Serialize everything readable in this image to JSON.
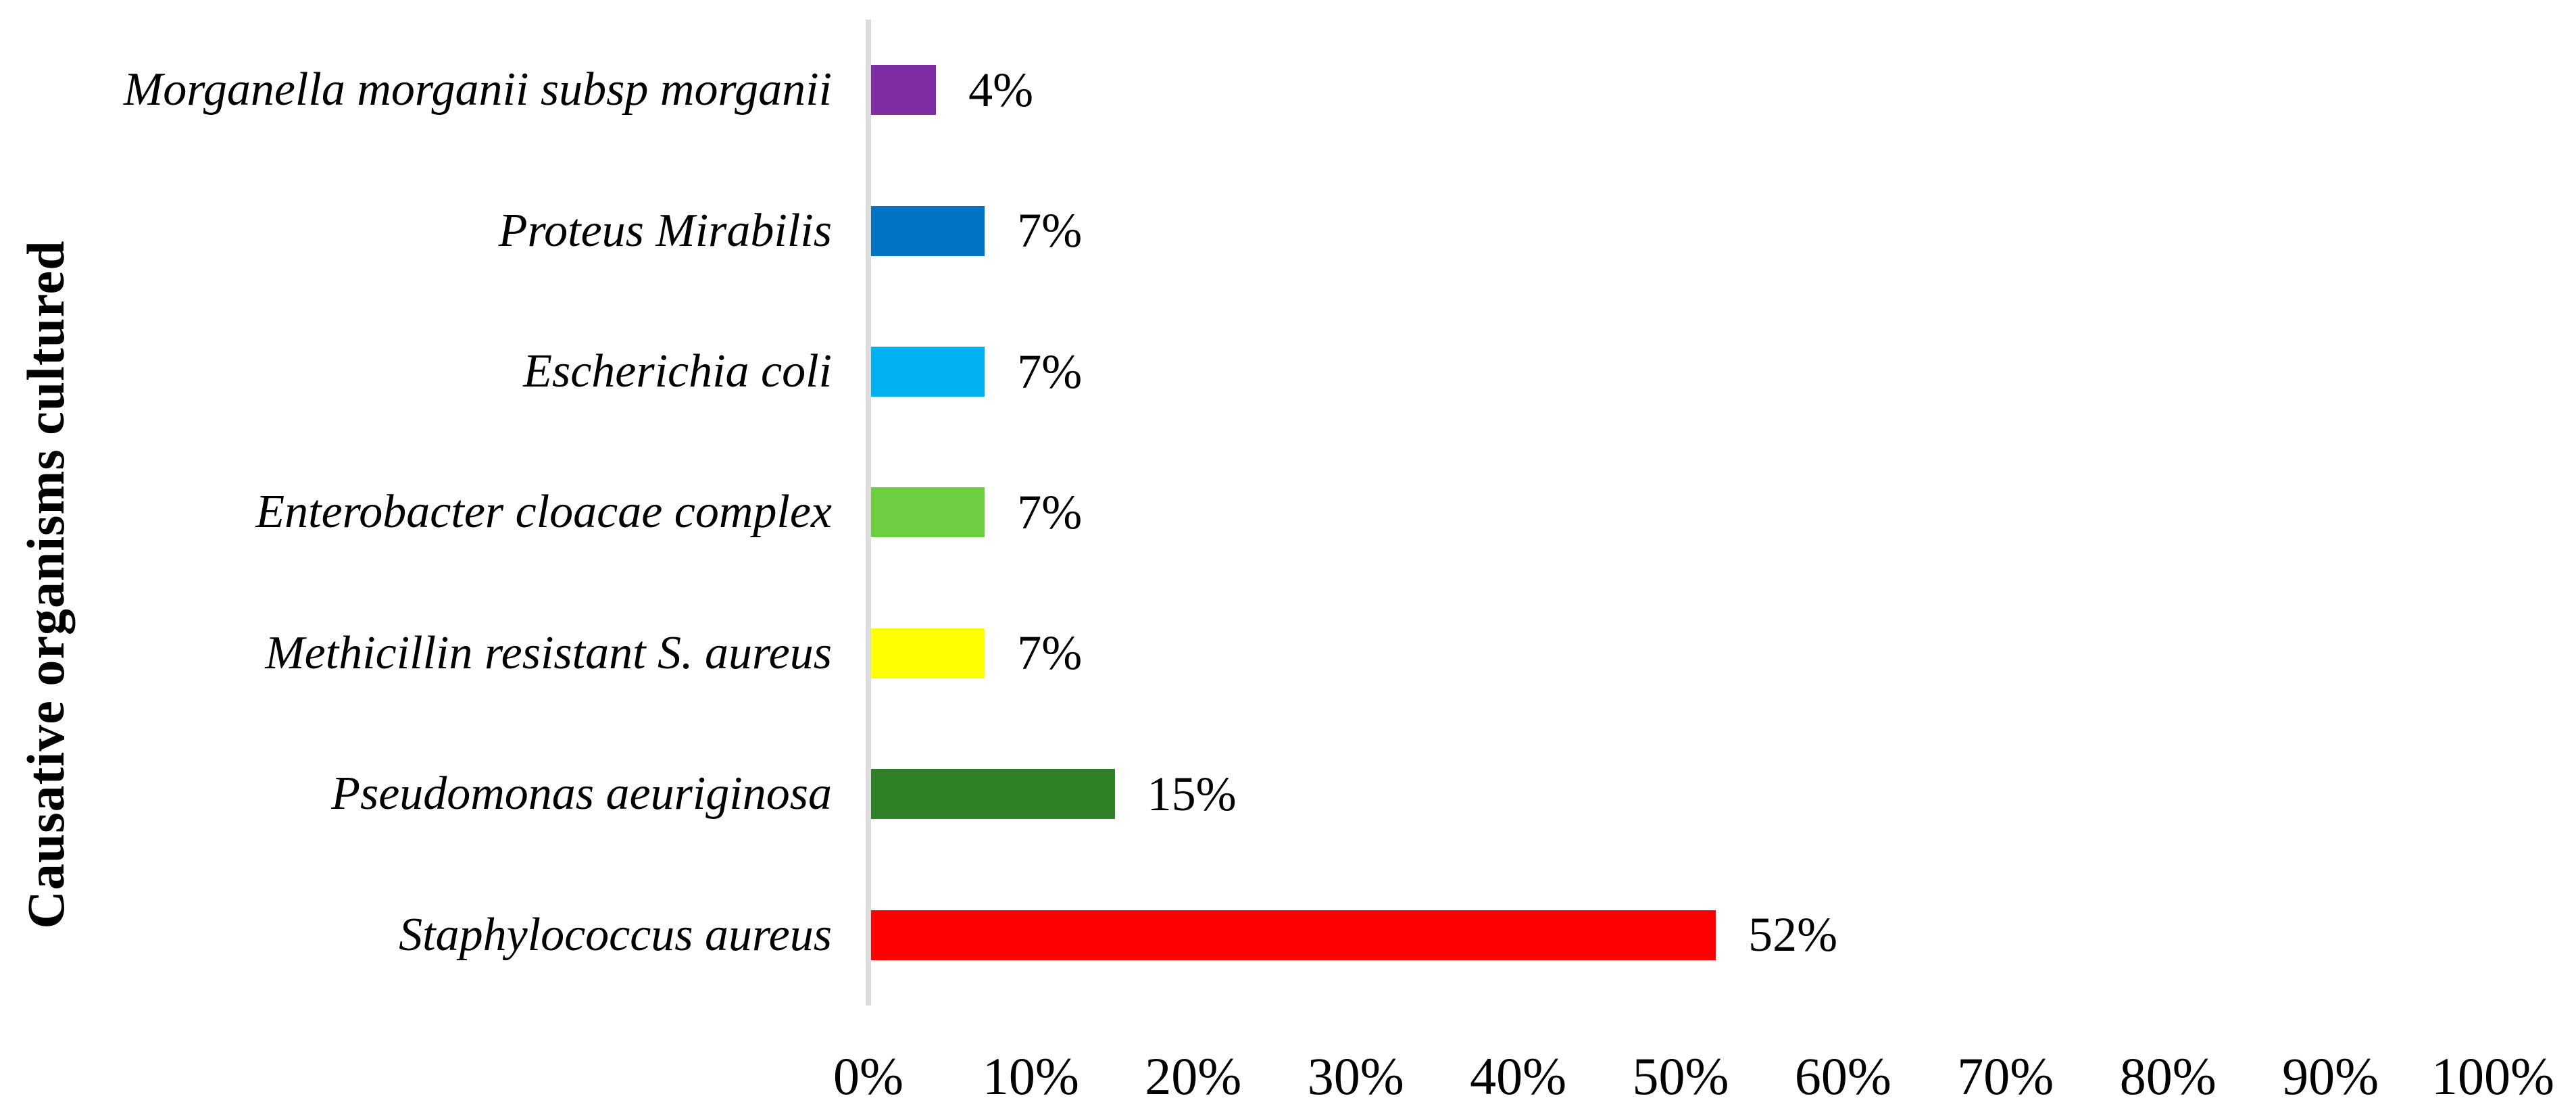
{
  "chart_data": {
    "type": "bar",
    "orientation": "horizontal",
    "title": "",
    "xlabel": "",
    "ylabel": "Causative organisms cultured",
    "xlim": [
      0,
      100
    ],
    "grid": false,
    "legend": false,
    "x_ticks": [
      "0%",
      "10%",
      "20%",
      "30%",
      "40%",
      "50%",
      "60%",
      "70%",
      "80%",
      "90%",
      "100%"
    ],
    "categories": [
      "Morganella morganii subsp morganii",
      "Proteus Mirabilis",
      "Escherichia coli",
      "Enterobacter cloacae complex",
      "Methicillin resistant S. aureus",
      "Pseudomonas aeuriginosa",
      "Staphylococcus aureus"
    ],
    "values": [
      4,
      7,
      7,
      7,
      7,
      15,
      52
    ],
    "value_labels": [
      "4%",
      "7%",
      "7%",
      "7%",
      "7%",
      "15%",
      "52%"
    ],
    "bar_colors": [
      "#7E2DA3",
      "#0272C3",
      "#00B0F0",
      "#6DCE41",
      "#FFFF00",
      "#2E8126",
      "#FF0000"
    ],
    "axis_line_color": "#DBDBDB",
    "text_color": "#000000"
  }
}
